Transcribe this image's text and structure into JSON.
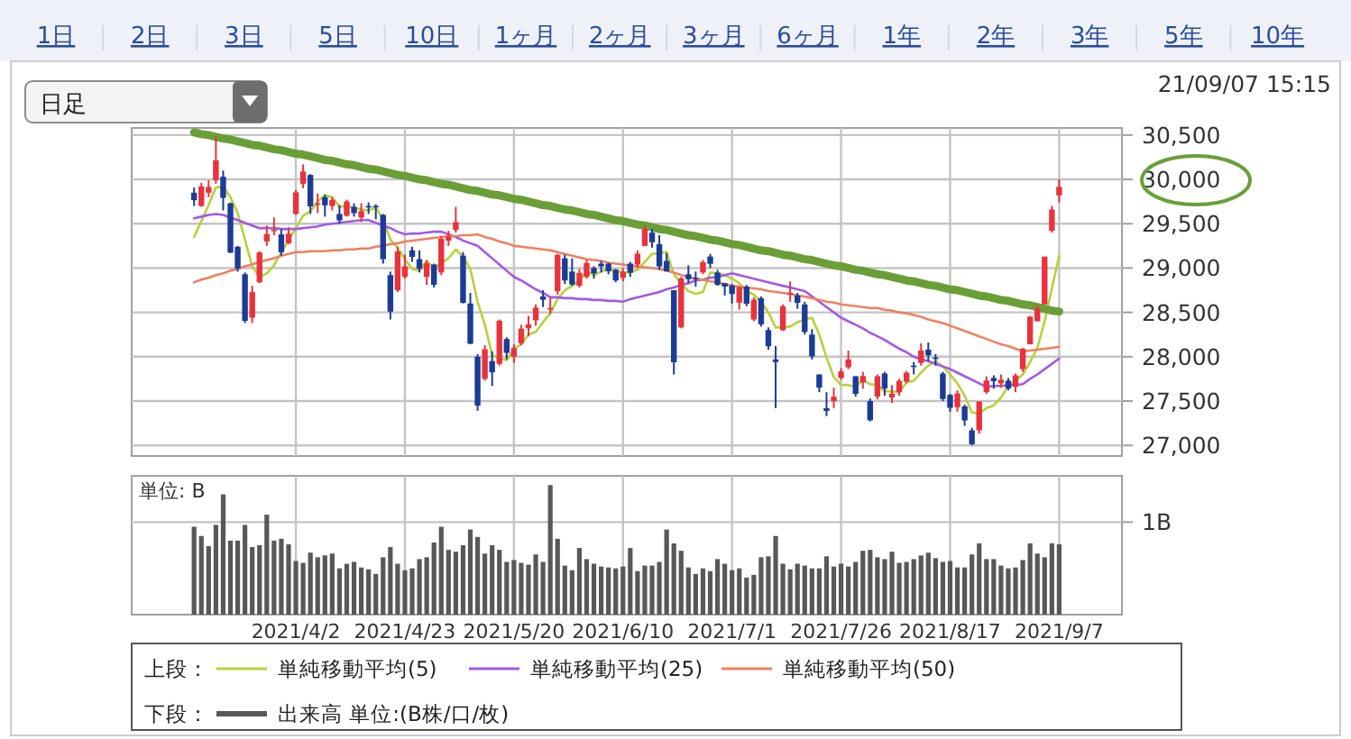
{
  "chart_data": [
    {
      "type": "candlestick",
      "categories": [
        null,
        null,
        null,
        null,
        null,
        null,
        null,
        null,
        null,
        null,
        null,
        null,
        null,
        null,
        "2021/4/2",
        null,
        null,
        null,
        null,
        null,
        null,
        null,
        null,
        null,
        null,
        null,
        null,
        null,
        null,
        "2021/4/23",
        null,
        null,
        null,
        null,
        null,
        null,
        null,
        null,
        null,
        null,
        null,
        null,
        null,
        null,
        "2021/5/20",
        null,
        null,
        null,
        null,
        null,
        null,
        null,
        null,
        null,
        null,
        null,
        null,
        null,
        null,
        "2021/6/10",
        null,
        null,
        null,
        null,
        null,
        null,
        null,
        null,
        null,
        null,
        null,
        null,
        null,
        null,
        "2021/7/1",
        null,
        null,
        null,
        null,
        null,
        null,
        null,
        null,
        null,
        null,
        null,
        null,
        null,
        null,
        "2021/7/26",
        null,
        null,
        null,
        null,
        null,
        null,
        null,
        null,
        null,
        null,
        null,
        null,
        null,
        null,
        "2021/8/17",
        null,
        null,
        null,
        null,
        null,
        null,
        null,
        null,
        null,
        null,
        null,
        null,
        null,
        null,
        "2021/9/7"
      ],
      "ohlc": [
        [
          29850,
          29910,
          29700,
          29766
        ],
        [
          29700,
          29960,
          29690,
          29921
        ],
        [
          29850,
          29990,
          29800,
          29914
        ],
        [
          29990,
          30485,
          29950,
          30216
        ],
        [
          30030,
          30100,
          29650,
          29792
        ],
        [
          29730,
          29740,
          29170,
          29174
        ],
        [
          29240,
          29250,
          28960,
          28995
        ],
        [
          28930,
          28950,
          28380,
          28405
        ],
        [
          28440,
          28800,
          28380,
          28729
        ],
        [
          28840,
          29190,
          28830,
          29176
        ],
        [
          29300,
          29480,
          29250,
          29384
        ],
        [
          29430,
          29570,
          29370,
          29432
        ],
        [
          29380,
          29440,
          29140,
          29178
        ],
        [
          29280,
          29460,
          29270,
          29388
        ],
        [
          29610,
          29880,
          29600,
          29854
        ],
        [
          29950,
          30170,
          29900,
          30089
        ],
        [
          30050,
          30060,
          29610,
          29696
        ],
        [
          29720,
          29840,
          29620,
          29730
        ],
        [
          29800,
          29830,
          29580,
          29708
        ],
        [
          29700,
          29800,
          29650,
          29768
        ],
        [
          29610,
          29710,
          29500,
          29538
        ],
        [
          29590,
          29770,
          29580,
          29751
        ],
        [
          29690,
          29730,
          29580,
          29620
        ],
        [
          29570,
          29730,
          29520,
          29642
        ],
        [
          29700,
          29740,
          29610,
          29683
        ],
        [
          29700,
          29720,
          29550,
          29685
        ],
        [
          29600,
          29610,
          29050,
          29100
        ],
        [
          28920,
          28960,
          28420,
          28508
        ],
        [
          28750,
          29240,
          28730,
          29188
        ],
        [
          28900,
          29150,
          28880,
          29020
        ],
        [
          29200,
          29240,
          29070,
          29126
        ],
        [
          29100,
          29200,
          28950,
          28991
        ],
        [
          28900,
          29090,
          28810,
          29053
        ],
        [
          29040,
          29050,
          28780,
          28812
        ],
        [
          28950,
          29360,
          28920,
          29331
        ],
        [
          29310,
          29420,
          29250,
          29357
        ],
        [
          29430,
          29690,
          29400,
          29518
        ],
        [
          29140,
          29180,
          28600,
          28608
        ],
        [
          28600,
          28720,
          28140,
          28147
        ],
        [
          28000,
          28030,
          27390,
          27448
        ],
        [
          27750,
          28130,
          27730,
          28084
        ],
        [
          27950,
          28060,
          27670,
          27824
        ],
        [
          27920,
          28420,
          27900,
          28406
        ],
        [
          28200,
          28220,
          27970,
          28044
        ],
        [
          28000,
          28140,
          27930,
          28098
        ],
        [
          28150,
          28360,
          28130,
          28317
        ],
        [
          28320,
          28460,
          28230,
          28364
        ],
        [
          28410,
          28590,
          28350,
          28553
        ],
        [
          28680,
          28750,
          28560,
          28642
        ],
        [
          28540,
          28670,
          28480,
          28549
        ],
        [
          28740,
          29160,
          28700,
          29149
        ],
        [
          29110,
          29150,
          28820,
          28860
        ],
        [
          28960,
          29110,
          28800,
          28814
        ],
        [
          28800,
          28990,
          28780,
          28946
        ],
        [
          28900,
          29090,
          28880,
          29058
        ],
        [
          29000,
          29020,
          28880,
          28941
        ],
        [
          29050,
          29080,
          28950,
          29019
        ],
        [
          29050,
          29060,
          28930,
          28963
        ],
        [
          28980,
          28990,
          28840,
          28860
        ],
        [
          28890,
          29000,
          28850,
          28958
        ],
        [
          29050,
          29070,
          28900,
          28948
        ],
        [
          29040,
          29200,
          29000,
          29161
        ],
        [
          29250,
          29480,
          29250,
          29441
        ],
        [
          29400,
          29440,
          29230,
          29291
        ],
        [
          29270,
          29370,
          28980,
          29018
        ],
        [
          29080,
          29170,
          28960,
          28964
        ],
        [
          28750,
          28750,
          27800,
          27937
        ],
        [
          28330,
          28900,
          28320,
          28884
        ],
        [
          28930,
          29030,
          28830,
          28874
        ],
        [
          28890,
          28960,
          28790,
          28875
        ],
        [
          28950,
          29090,
          28930,
          29066
        ],
        [
          29130,
          29160,
          29000,
          29048
        ],
        [
          28950,
          28980,
          28800,
          28812
        ],
        [
          28830,
          28830,
          28690,
          28791
        ],
        [
          28800,
          28820,
          28600,
          28707
        ],
        [
          28610,
          28790,
          28530,
          28783
        ],
        [
          28790,
          28810,
          28570,
          28598
        ],
        [
          28420,
          28670,
          28400,
          28643
        ],
        [
          28660,
          28680,
          28340,
          28366
        ],
        [
          28300,
          28330,
          28080,
          28118
        ],
        [
          27970,
          28120,
          27420,
          27940
        ],
        [
          28300,
          28590,
          28290,
          28569
        ],
        [
          28700,
          28850,
          28620,
          28718
        ],
        [
          28690,
          28720,
          28540,
          28608
        ],
        [
          28590,
          28620,
          28250,
          28279
        ],
        [
          28250,
          28310,
          27970,
          28003
        ],
        [
          27800,
          27800,
          27600,
          27652
        ],
        [
          27420,
          27600,
          27330,
          27388
        ],
        [
          27500,
          27650,
          27420,
          27548
        ],
        [
          27760,
          27870,
          27740,
          27833
        ],
        [
          27880,
          28070,
          27860,
          27970
        ],
        [
          27780,
          27780,
          27550,
          27581
        ],
        [
          27710,
          27830,
          27640,
          27782
        ],
        [
          27500,
          27530,
          27270,
          27283
        ],
        [
          27550,
          27800,
          27520,
          27781
        ],
        [
          27810,
          27830,
          27560,
          27641
        ],
        [
          27540,
          27680,
          27480,
          27584
        ],
        [
          27600,
          27750,
          27560,
          27728
        ],
        [
          27720,
          27840,
          27700,
          27820
        ],
        [
          27900,
          27940,
          27800,
          27888
        ],
        [
          27930,
          28150,
          27900,
          28070
        ],
        [
          28080,
          28160,
          27950,
          28015
        ],
        [
          27990,
          28030,
          27900,
          27977
        ],
        [
          27810,
          27830,
          27500,
          27523
        ],
        [
          27570,
          27580,
          27380,
          27424
        ],
        [
          27430,
          27620,
          27380,
          27585
        ],
        [
          27440,
          27460,
          27220,
          27281
        ],
        [
          27170,
          27200,
          27000,
          27013
        ],
        [
          27170,
          27500,
          27130,
          27494
        ],
        [
          27600,
          27780,
          27580,
          27732
        ],
        [
          27760,
          27790,
          27640,
          27724
        ],
        [
          27700,
          27800,
          27650,
          27742
        ],
        [
          27730,
          27760,
          27620,
          27641
        ],
        [
          27660,
          27810,
          27600,
          27789
        ],
        [
          27860,
          28100,
          27830,
          28089
        ],
        [
          28140,
          28460,
          28140,
          28451
        ],
        [
          28400,
          28580,
          28400,
          28543
        ],
        [
          28590,
          29130,
          28590,
          29128
        ],
        [
          29420,
          29700,
          29400,
          29660
        ],
        [
          29820,
          30000,
          29740,
          29916
        ]
      ],
      "series": [
        {
          "name": "単純移動平均(5)",
          "type": "line",
          "color": "#b8d13a",
          "values": [
            29350,
            29530,
            29710,
            29910,
            29920,
            29800,
            29620,
            29320,
            29020,
            28900,
            28940,
            29030,
            29180,
            29310,
            29450,
            29590,
            29640,
            29750,
            29820,
            29800,
            29690,
            29700,
            29680,
            29660,
            29650,
            29680,
            29550,
            29320,
            29230,
            29100,
            28990,
            28970,
            29080,
            29000,
            29060,
            29110,
            29210,
            29130,
            28990,
            28620,
            28360,
            28020,
            27980,
            27960,
            28090,
            28140,
            28250,
            28280,
            28390,
            28490,
            28650,
            28750,
            28800,
            28860,
            28970,
            28920,
            28960,
            28990,
            28970,
            28950,
            28950,
            28980,
            29070,
            29160,
            29170,
            29180,
            28930,
            28820,
            28740,
            28710,
            28730,
            28950,
            28940,
            28920,
            28880,
            28830,
            28740,
            28700,
            28620,
            28500,
            28330,
            28330,
            28340,
            28390,
            28420,
            28440,
            28250,
            27990,
            27770,
            27680,
            27680,
            27660,
            27740,
            27690,
            27680,
            27610,
            27610,
            27600,
            27710,
            27730,
            27820,
            27900,
            27950,
            27890,
            27800,
            27700,
            27560,
            27370,
            27360,
            27420,
            27450,
            27540,
            27670,
            27730,
            27800,
            27940,
            28100,
            28400,
            28770,
            29140
          ]
        },
        {
          "name": "単純移動平均(25)",
          "type": "line",
          "color": "#a259e6",
          "values": [
            29560,
            29580,
            29600,
            29610,
            29600,
            29570,
            29540,
            29510,
            29480,
            29450,
            29450,
            29450,
            29440,
            29440,
            29440,
            29450,
            29460,
            29470,
            29490,
            29500,
            29510,
            29520,
            29530,
            29540,
            29540,
            29510,
            29480,
            29450,
            29410,
            29380,
            29390,
            29390,
            29400,
            29410,
            29410,
            29380,
            29350,
            29310,
            29280,
            29250,
            29180,
            29110,
            29040,
            28970,
            28900,
            28860,
            28810,
            28760,
            28720,
            28670,
            28670,
            28660,
            28660,
            28650,
            28650,
            28640,
            28640,
            28630,
            28630,
            28620,
            28650,
            28670,
            28690,
            28710,
            28730,
            28760,
            28780,
            28810,
            28830,
            28860,
            28870,
            28890,
            28900,
            28920,
            28940,
            28920,
            28900,
            28880,
            28860,
            28840,
            28820,
            28800,
            28780,
            28760,
            28740,
            28680,
            28620,
            28560,
            28500,
            28440,
            28400,
            28360,
            28320,
            28270,
            28230,
            28190,
            28140,
            28090,
            28050,
            28000,
            27970,
            27950,
            27920,
            27890,
            27860,
            27820,
            27780,
            27740,
            27700,
            27660,
            27670,
            27670,
            27680,
            27680,
            27690,
            27750,
            27800,
            27860,
            27920,
            27980
          ]
        },
        {
          "name": "単純移動平均(50)",
          "type": "line",
          "color": "#f0805e",
          "values": [
            28840,
            28870,
            28890,
            28920,
            28940,
            28970,
            28990,
            29020,
            29040,
            29070,
            29090,
            29110,
            29140,
            29160,
            29180,
            29180,
            29190,
            29190,
            29190,
            29200,
            29200,
            29210,
            29210,
            29220,
            29220,
            29240,
            29250,
            29270,
            29280,
            29300,
            29310,
            29320,
            29330,
            29340,
            29350,
            29360,
            29360,
            29370,
            29370,
            29380,
            29350,
            29330,
            29300,
            29280,
            29250,
            29240,
            29230,
            29220,
            29210,
            29200,
            29180,
            29160,
            29140,
            29120,
            29100,
            29090,
            29080,
            29060,
            29050,
            29040,
            29030,
            29020,
            29010,
            29000,
            28990,
            28970,
            28950,
            28920,
            28900,
            28880,
            28870,
            28850,
            28840,
            28820,
            28800,
            28790,
            28780,
            28770,
            28760,
            28740,
            28730,
            28720,
            28710,
            28690,
            28680,
            28660,
            28640,
            28620,
            28610,
            28590,
            28580,
            28570,
            28560,
            28550,
            28550,
            28530,
            28520,
            28500,
            28490,
            28470,
            28450,
            28420,
            28400,
            28380,
            28350,
            28320,
            28290,
            28260,
            28230,
            28200,
            28170,
            28140,
            28120,
            28090,
            28060,
            28070,
            28080,
            28090,
            28100,
            28110
          ]
        },
        {
          "type": "line",
          "color": "#6a9f38",
          "values": [
            30530,
            30510,
            30500,
            30480,
            30460,
            30450,
            30430,
            30410,
            30390,
            30380,
            30360,
            30340,
            30330,
            30310,
            30290,
            30280,
            30260,
            30240,
            30220,
            30210,
            30190,
            30170,
            30160,
            30140,
            30120,
            30110,
            30090,
            30070,
            30050,
            30040,
            30020,
            30000,
            29990,
            29970,
            29950,
            29940,
            29920,
            29900,
            29880,
            29870,
            29850,
            29830,
            29820,
            29800,
            29780,
            29770,
            29750,
            29730,
            29710,
            29700,
            29680,
            29660,
            29650,
            29630,
            29610,
            29600,
            29580,
            29560,
            29540,
            29530,
            29510,
            29490,
            29480,
            29460,
            29440,
            29430,
            29410,
            29390,
            29370,
            29360,
            29340,
            29320,
            29310,
            29290,
            29270,
            29260,
            29240,
            29220,
            29200,
            29190,
            29170,
            29150,
            29140,
            29120,
            29100,
            29090,
            29070,
            29050,
            29030,
            29020,
            29000,
            28980,
            28970,
            28950,
            28930,
            28920,
            28900,
            28880,
            28860,
            28850,
            28830,
            28810,
            28800,
            28780,
            28760,
            28750,
            28730,
            28710,
            28690,
            28680,
            28660,
            28640,
            28630,
            28610,
            28590,
            28580,
            28560,
            28540,
            28520,
            28510
          ]
        }
      ],
      "ylim": [
        26880,
        30580
      ],
      "yticks": [
        {
          "value": 27000,
          "label": "27,000"
        },
        {
          "value": 27500,
          "label": "27,500"
        },
        {
          "value": 28000,
          "label": "28,000"
        },
        {
          "value": 28500,
          "label": "28,500"
        },
        {
          "value": 29000,
          "label": "29,000"
        },
        {
          "value": 29500,
          "label": "29,500"
        },
        {
          "value": 30000,
          "label": "30,000"
        },
        {
          "value": 30500,
          "label": "30,500"
        }
      ],
      "grid": true,
      "tick_labels": "y",
      "legend": "bottom",
      "annotations": [
        "1日",
        "2日",
        "3日",
        "5日",
        "10日",
        "1ヶ月",
        "2ヶ月",
        "3ヶ月",
        "6ヶ月",
        "1年",
        "2年",
        "3年",
        "5年",
        "10年",
        "日足",
        "21/09/07 15:15",
        "上段："
      ]
    },
    {
      "type": "bar",
      "categories": [
        null,
        null,
        null,
        null,
        null,
        null,
        null,
        null,
        null,
        null,
        null,
        null,
        null,
        null,
        "2021/4/2",
        null,
        null,
        null,
        null,
        null,
        null,
        null,
        null,
        null,
        null,
        null,
        null,
        null,
        null,
        "2021/4/23",
        null,
        null,
        null,
        null,
        null,
        null,
        null,
        null,
        null,
        null,
        null,
        null,
        null,
        null,
        "2021/5/20",
        null,
        null,
        null,
        null,
        null,
        null,
        null,
        null,
        null,
        null,
        null,
        null,
        null,
        null,
        "2021/6/10",
        null,
        null,
        null,
        null,
        null,
        null,
        null,
        null,
        null,
        null,
        null,
        null,
        null,
        null,
        "2021/7/1",
        null,
        null,
        null,
        null,
        null,
        null,
        null,
        null,
        null,
        null,
        null,
        null,
        null,
        null,
        "2021/7/26",
        null,
        null,
        null,
        null,
        null,
        null,
        null,
        null,
        null,
        null,
        null,
        null,
        null,
        null,
        "2021/8/17",
        null,
        null,
        null,
        null,
        null,
        null,
        null,
        null,
        null,
        null,
        null,
        null,
        null,
        null,
        "2021/9/7"
      ],
      "series": [
        {
          "name": "出来高 単位:(B株/口/枚)",
          "color": "#585858",
          "values": [
            0.95,
            0.85,
            0.74,
            0.97,
            1.3,
            0.8,
            0.8,
            0.97,
            0.73,
            0.75,
            1.08,
            0.8,
            0.82,
            0.76,
            0.58,
            0.56,
            0.67,
            0.62,
            0.64,
            0.66,
            0.5,
            0.55,
            0.57,
            0.51,
            0.49,
            0.44,
            0.62,
            0.73,
            0.55,
            0.48,
            0.5,
            0.6,
            0.62,
            0.78,
            0.95,
            0.7,
            0.68,
            0.75,
            0.92,
            0.84,
            0.66,
            0.75,
            0.7,
            0.57,
            0.59,
            0.56,
            0.54,
            0.65,
            0.57,
            1.4,
            0.82,
            0.53,
            0.48,
            0.72,
            0.6,
            0.55,
            0.52,
            0.51,
            0.5,
            0.52,
            0.72,
            0.47,
            0.53,
            0.53,
            0.57,
            0.92,
            0.77,
            0.69,
            0.51,
            0.44,
            0.5,
            0.47,
            0.6,
            0.55,
            0.48,
            0.5,
            0.4,
            0.43,
            0.62,
            0.63,
            0.85,
            0.55,
            0.49,
            0.55,
            0.53,
            0.5,
            0.5,
            0.63,
            0.52,
            0.55,
            0.52,
            0.57,
            0.69,
            0.7,
            0.62,
            0.6,
            0.68,
            0.56,
            0.57,
            0.6,
            0.64,
            0.67,
            0.61,
            0.57,
            0.58,
            0.51,
            0.51,
            0.65,
            0.77,
            0.6,
            0.6,
            0.53,
            0.5,
            0.51,
            0.59,
            0.77,
            0.66,
            0.62,
            0.77,
            0.76
          ]
        }
      ],
      "ylabel": "単位: B",
      "ylim": [
        0,
        1.5
      ],
      "yticks": [
        {
          "value": 1,
          "label": "1B"
        }
      ],
      "grid": true,
      "legend": "bottom",
      "annotations": [
        "下段："
      ]
    }
  ]
}
